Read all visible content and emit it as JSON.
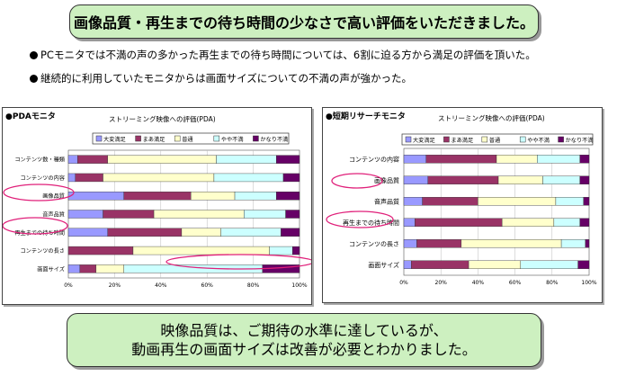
{
  "top_banner": "画像品質・再生までの待ち時間の少なさで高い評価をいただきました。",
  "bullets": [
    "PCモニタでは不満の声の多かった再生までの待ち時間については、6割に迫る方から満足の評価を頂いた。",
    "継続的に利用していたモニタからは画面サイズについての不満の声が強かった。"
  ],
  "bottom_banner": {
    "line1": "映像品質は、ご期待の水準に達しているが、",
    "line2": "動画再生の画面サイズは改善が必要とわかりました。"
  },
  "colors": {
    "very_satisfied": "#9999ff",
    "somewhat_satisfied": "#993366",
    "neutral": "#ffffcc",
    "somewhat_dissatisfied": "#ccffff",
    "very_dissatisfied": "#660066",
    "highlight": "#e0207a"
  },
  "chart_data": [
    {
      "type": "bar",
      "orientation": "horizontal-stacked-percent",
      "panel_title": "●PDAモニタ",
      "title": "ストリーミング映像への評価(PDA)",
      "legend": [
        "大変満足",
        "まあ満足",
        "普通",
        "やや不満",
        "かなり不満"
      ],
      "categories": [
        "コンテンツ数・種類",
        "コンテンツの内容",
        "画像品質",
        "音声品質",
        "再生までの待ち時間",
        "コンテンツの長さ",
        "画面サイズ"
      ],
      "series": [
        {
          "name": "大変満足",
          "values": [
            4,
            3,
            24,
            15,
            17,
            0,
            5
          ]
        },
        {
          "name": "まあ満足",
          "values": [
            13,
            12,
            29,
            22,
            32,
            28,
            7
          ]
        },
        {
          "name": "普通",
          "values": [
            47,
            48,
            19,
            39,
            17,
            59,
            12
          ]
        },
        {
          "name": "やや不満",
          "values": [
            26,
            30,
            18,
            18,
            26,
            10,
            60
          ]
        },
        {
          "name": "かなり不満",
          "values": [
            10,
            7,
            10,
            6,
            8,
            3,
            16
          ]
        }
      ],
      "xticks": [
        "0%",
        "20%",
        "40%",
        "60%",
        "80%",
        "100%"
      ],
      "highlighted": [
        "画像品質",
        "再生までの待ち時間",
        "画面サイズ"
      ],
      "xlim": [
        0,
        100
      ]
    },
    {
      "type": "bar",
      "orientation": "horizontal-stacked-percent",
      "panel_title": "●短期リサーチモニタ",
      "title": "ストリーミング映像への評価(PDA)",
      "legend": [
        "大変満足",
        "まあ満足",
        "普通",
        "やや不満",
        "かなり不満"
      ],
      "categories": [
        "コンテンツの内容",
        "画像品質",
        "音声品質",
        "再生までの待ち時間",
        "コンテンツの長さ",
        "画面サイズ"
      ],
      "series": [
        {
          "name": "大変満足",
          "values": [
            12,
            13,
            10,
            6,
            7,
            4
          ]
        },
        {
          "name": "まあ満足",
          "values": [
            38,
            38,
            30,
            47,
            24,
            31
          ]
        },
        {
          "name": "普通",
          "values": [
            22,
            24,
            42,
            28,
            54,
            28
          ]
        },
        {
          "name": "やや不満",
          "values": [
            23,
            20,
            15,
            14,
            13,
            31
          ]
        },
        {
          "name": "かなり不満",
          "values": [
            5,
            5,
            3,
            5,
            2,
            6
          ]
        }
      ],
      "xticks": [
        "0%",
        "20%",
        "40%",
        "60%",
        "80%",
        "100%"
      ],
      "highlighted": [
        "画像品質",
        "再生までの待ち時間"
      ],
      "xlim": [
        0,
        100
      ]
    }
  ]
}
